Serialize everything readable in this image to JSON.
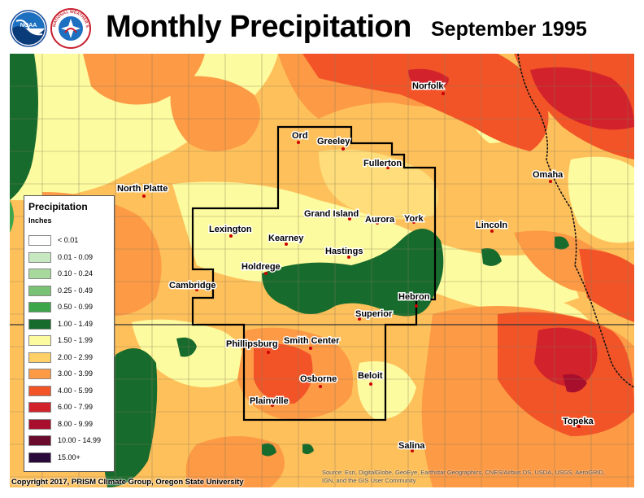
{
  "header": {
    "title": "Monthly Precipitation",
    "subtitle": "September 1995",
    "logo_noaa_text": "NOAA",
    "logo_nws_text": "NATIONAL WEATHER SERVICE"
  },
  "legend": {
    "title": "Precipitation",
    "units": "Inches",
    "items": [
      {
        "label": "< 0.01",
        "color": "#ffffff"
      },
      {
        "label": "0.01 - 0.09",
        "color": "#c7e8c0"
      },
      {
        "label": "0.10 - 0.24",
        "color": "#a6d99b"
      },
      {
        "label": "0.25 - 0.49",
        "color": "#79c274"
      },
      {
        "label": "0.50 - 0.99",
        "color": "#3ea64a"
      },
      {
        "label": "1.00 - 1.49",
        "color": "#176b2c"
      },
      {
        "label": "1.50 - 1.99",
        "color": "#fdfb9f"
      },
      {
        "label": "2.00 - 2.99",
        "color": "#fed066"
      },
      {
        "label": "3.00 - 3.99",
        "color": "#fd9a45"
      },
      {
        "label": "4.00 - 5.99",
        "color": "#f25428"
      },
      {
        "label": "6.00 - 7.99",
        "color": "#d2222b"
      },
      {
        "label": "8.00 - 9.99",
        "color": "#a80f2d"
      },
      {
        "label": "10.00 - 14.99",
        "color": "#6a0a2c"
      },
      {
        "label": "15.00+",
        "color": "#2a0a3a"
      }
    ]
  },
  "cities": [
    {
      "name": "Norfolk"
    },
    {
      "name": "Ord"
    },
    {
      "name": "Greeley"
    },
    {
      "name": "Fullerton"
    },
    {
      "name": "Omaha"
    },
    {
      "name": "North Platte"
    },
    {
      "name": "Grand Island"
    },
    {
      "name": "Aurora"
    },
    {
      "name": "York"
    },
    {
      "name": "Lincoln"
    },
    {
      "name": "Lexington"
    },
    {
      "name": "Kearney"
    },
    {
      "name": "Hastings"
    },
    {
      "name": "Holdrege"
    },
    {
      "name": "Cambridge"
    },
    {
      "name": "Hebron"
    },
    {
      "name": "Superior"
    },
    {
      "name": "Phillipsburg"
    },
    {
      "name": "Smith Center"
    },
    {
      "name": "Osborne"
    },
    {
      "name": "Beloit"
    },
    {
      "name": "Plainville"
    },
    {
      "name": "Topeka"
    },
    {
      "name": "Salina"
    }
  ],
  "footer": {
    "copyright": "Copyright 2017, PRISM Climate Group, Oregon State University",
    "source_line1": "Source: Esri, DigitalGlobe, GeoEye, Earthstar Geographics, CNES/Airbus DS, USDA, USGS, AeroGRID,",
    "source_line2": "IGN, and the GIS User Community"
  }
}
